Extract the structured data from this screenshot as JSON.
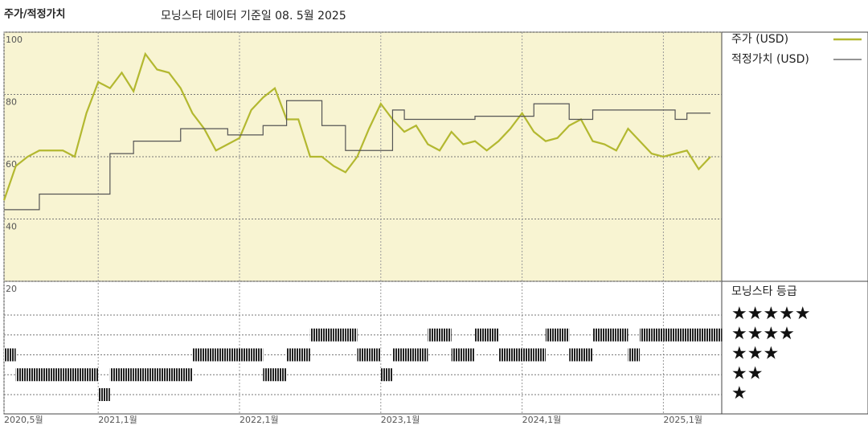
{
  "chart_data": [
    {
      "type": "line",
      "title": "주가/적정가치",
      "subtitle": "모닝스타 데이터 기준일 08. 5월 2025",
      "background": "#f8f4d2",
      "x": [
        "2020-05",
        "2020-06",
        "2020-07",
        "2020-08",
        "2020-09",
        "2020-10",
        "2020-11",
        "2020-12",
        "2021-01",
        "2021-02",
        "2021-03",
        "2021-04",
        "2021-05",
        "2021-06",
        "2021-07",
        "2021-08",
        "2021-09",
        "2021-10",
        "2021-11",
        "2021-12",
        "2022-01",
        "2022-02",
        "2022-03",
        "2022-04",
        "2022-05",
        "2022-06",
        "2022-07",
        "2022-08",
        "2022-09",
        "2022-10",
        "2022-11",
        "2022-12",
        "2023-01",
        "2023-02",
        "2023-03",
        "2023-04",
        "2023-05",
        "2023-06",
        "2023-07",
        "2023-08",
        "2023-09",
        "2023-10",
        "2023-11",
        "2023-12",
        "2024-01",
        "2024-02",
        "2024-03",
        "2024-04",
        "2024-05",
        "2024-06",
        "2024-07",
        "2024-08",
        "2024-09",
        "2024-10",
        "2024-11",
        "2024-12",
        "2025-01",
        "2025-02",
        "2025-03",
        "2025-04",
        "2025-05"
      ],
      "xticks": [
        {
          "value": "2020-05",
          "label": "2020,5월"
        },
        {
          "value": "2021-01",
          "label": "2021,1월"
        },
        {
          "value": "2022-01",
          "label": "2022,1월"
        },
        {
          "value": "2023-01",
          "label": "2023,1월"
        },
        {
          "value": "2024-01",
          "label": "2024,1월"
        },
        {
          "value": "2025-01",
          "label": "2025,1월"
        }
      ],
      "ylim": [
        20,
        100
      ],
      "yticks": [
        20,
        40,
        60,
        80,
        100
      ],
      "series": [
        {
          "name": "주가 (USD)",
          "color": "#b3b830",
          "values": [
            46,
            57,
            60,
            62,
            62,
            62,
            60,
            74,
            84,
            82,
            87,
            81,
            93,
            88,
            87,
            82,
            74,
            69,
            62,
            64,
            66,
            75,
            79,
            82,
            72,
            72,
            60,
            60,
            57,
            55,
            60,
            69,
            77,
            72,
            68,
            70,
            64,
            62,
            68,
            64,
            65,
            62,
            65,
            69,
            74,
            68,
            65,
            66,
            70,
            72,
            65,
            64,
            62,
            69,
            65,
            61,
            60,
            61,
            62,
            56,
            60
          ]
        },
        {
          "name": "적정가치 (USD)",
          "color": "#555555",
          "step": true,
          "values": [
            43,
            43,
            43,
            48,
            48,
            48,
            48,
            48,
            48,
            61,
            61,
            65,
            65,
            65,
            65,
            69,
            69,
            69,
            69,
            67,
            67,
            67,
            70,
            70,
            78,
            78,
            78,
            70,
            70,
            62,
            62,
            62,
            62,
            75,
            72,
            72,
            72,
            72,
            72,
            72,
            73,
            73,
            73,
            73,
            73,
            77,
            77,
            77,
            72,
            72,
            75,
            75,
            75,
            75,
            75,
            75,
            75,
            72,
            74,
            74,
            74
          ]
        }
      ]
    },
    {
      "type": "rating",
      "title": "모닝스타 등급",
      "levels": [
        "★",
        "★★",
        "★★★",
        "★★★★",
        "★★★★★"
      ],
      "values": [
        3,
        2,
        2,
        2,
        2,
        2,
        2,
        2,
        1,
        2,
        2,
        2,
        2,
        2,
        2,
        2,
        3,
        3,
        3,
        3,
        3,
        3,
        2,
        2,
        3,
        3,
        4,
        4,
        4,
        4,
        3,
        3,
        2,
        3,
        3,
        3,
        4,
        4,
        3,
        3,
        4,
        4,
        3,
        3,
        3,
        3,
        4,
        4,
        3,
        3,
        4,
        4,
        4,
        3,
        4,
        4,
        4,
        4,
        4,
        4,
        4
      ]
    }
  ]
}
